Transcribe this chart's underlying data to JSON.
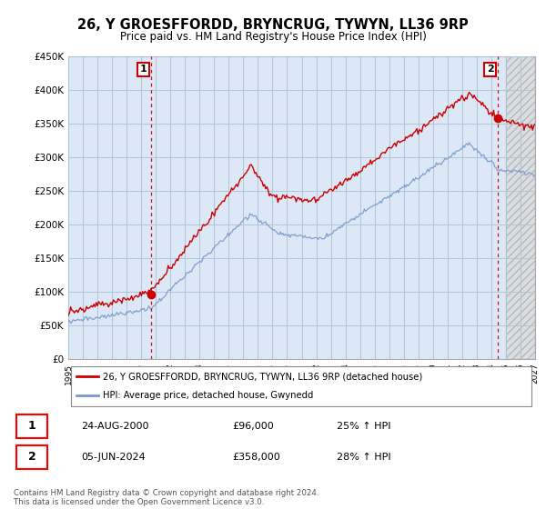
{
  "title": "26, Y GROESFFORDD, BRYNCRUG, TYWYN, LL36 9RP",
  "subtitle": "Price paid vs. HM Land Registry's House Price Index (HPI)",
  "legend_entry1": "26, Y GROESFFORDD, BRYNCRUG, TYWYN, LL36 9RP (detached house)",
  "legend_entry2": "HPI: Average price, detached house, Gwynedd",
  "annotation1_date": "24-AUG-2000",
  "annotation1_price": "£96,000",
  "annotation1_hpi": "25% ↑ HPI",
  "annotation2_date": "05-JUN-2024",
  "annotation2_price": "£358,000",
  "annotation2_hpi": "28% ↑ HPI",
  "footnote": "Contains HM Land Registry data © Crown copyright and database right 2024.\nThis data is licensed under the Open Government Licence v3.0.",
  "line1_color": "#cc0000",
  "line2_color": "#7799cc",
  "chart_bg": "#dce8f5",
  "future_bg": "#e8e8e8",
  "background_color": "#ffffff",
  "grid_color": "#b0c4d8",
  "ylim": [
    0,
    450000
  ],
  "yticks": [
    0,
    50000,
    100000,
    150000,
    200000,
    250000,
    300000,
    350000,
    400000,
    450000
  ],
  "sale1_year": 2000.65,
  "sale1_value": 96000,
  "sale2_year": 2024.43,
  "sale2_value": 358000,
  "xmin": 1995,
  "xmax": 2027,
  "future_start": 2025.0
}
